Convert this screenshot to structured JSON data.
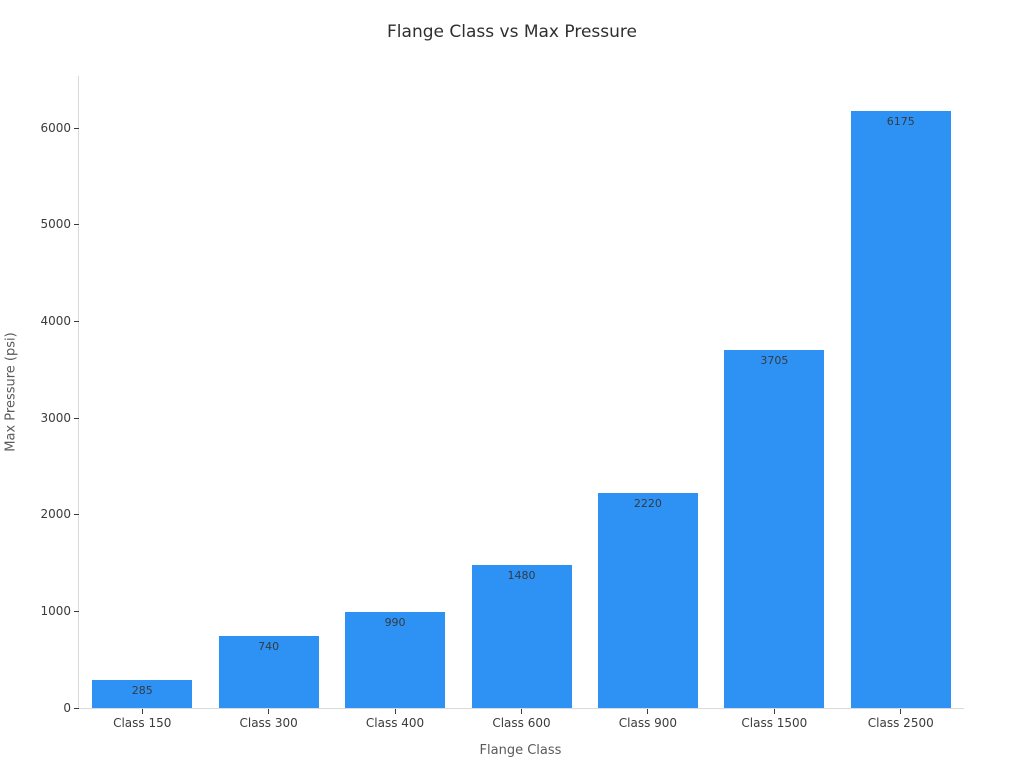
{
  "chart_data": {
    "type": "bar",
    "title": "Flange Class vs Max Pressure",
    "xlabel": "Flange Class",
    "ylabel": "Max Pressure (psi)",
    "categories": [
      "Class 150",
      "Class 300",
      "Class 400",
      "Class 600",
      "Class 900",
      "Class 1500",
      "Class 2500"
    ],
    "values": [
      285,
      740,
      990,
      1480,
      2220,
      3705,
      6175
    ],
    "bar_value_labels": [
      "285",
      "740",
      "990",
      "1480",
      "2220",
      "3705",
      "6175"
    ],
    "yticks": [
      0,
      1000,
      2000,
      3000,
      4000,
      5000,
      6000
    ],
    "ylim": [
      0,
      6538
    ],
    "grid": false,
    "legend": false,
    "bar_color": "#2E92F5",
    "value_label_color": "#353b40",
    "axis_line_color": "#d9d9d9",
    "tick_color": "#3b3b3b"
  }
}
